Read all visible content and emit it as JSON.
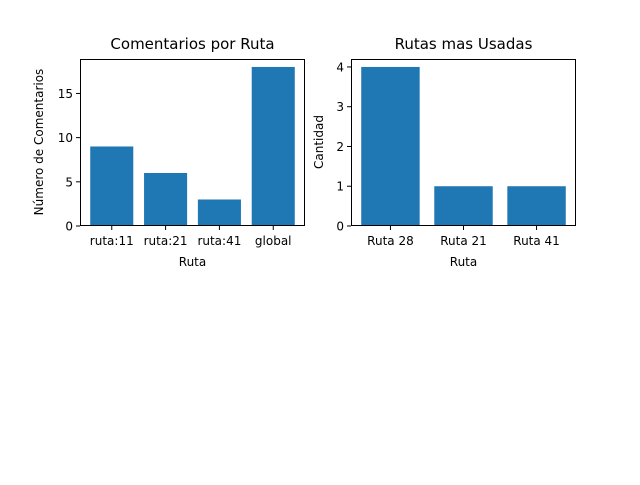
{
  "chart_data": [
    {
      "type": "bar",
      "title": "Comentarios por Ruta",
      "xlabel": "Ruta",
      "ylabel": "Número de Comentarios",
      "categories": [
        "ruta:11",
        "ruta:21",
        "ruta:41",
        "global"
      ],
      "values": [
        9,
        6,
        3,
        18
      ],
      "ylim": [
        0,
        18.9
      ],
      "yticks": [
        0,
        5,
        10,
        15
      ],
      "grid": false,
      "color": "#1f77b4"
    },
    {
      "type": "bar",
      "title": "Rutas mas Usadas",
      "xlabel": "Ruta",
      "ylabel": "Cantidad",
      "categories": [
        "Ruta 28",
        "Ruta 21",
        "Ruta 41"
      ],
      "values": [
        4,
        1,
        1
      ],
      "ylim": [
        0,
        4.2
      ],
      "yticks": [
        0,
        1,
        2,
        3,
        4
      ],
      "grid": false,
      "color": "#1f77b4"
    }
  ]
}
